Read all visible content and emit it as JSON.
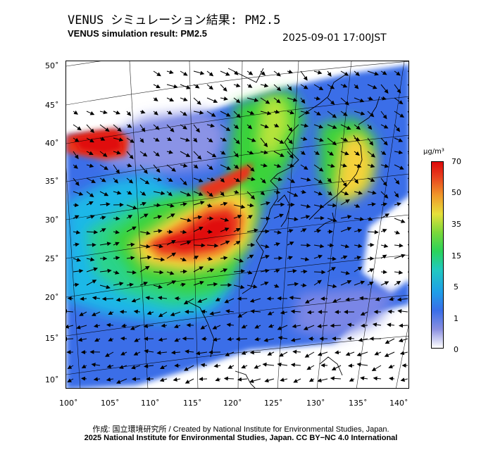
{
  "header": {
    "title_jp": "VENUS シミュレーション結果: PM2.5",
    "title_en": "VENUS simulation result: PM2.5",
    "timestamp": "2025-09-01 17:00JST"
  },
  "axes": {
    "lat_labels": [
      "50˚",
      "45˚",
      "40˚",
      "35˚",
      "30˚",
      "25˚",
      "20˚",
      "15˚",
      "10˚"
    ],
    "lon_labels": [
      "100˚",
      "105˚",
      "110˚",
      "115˚",
      "120˚",
      "125˚",
      "130˚",
      "135˚",
      "140˚"
    ]
  },
  "colorbar": {
    "unit": "µg/m³",
    "ticks": [
      "70",
      "50",
      "35",
      "15",
      "5",
      "1",
      "0"
    ],
    "colors": [
      "#ffffff",
      "#7a86e6",
      "#3a6ee8",
      "#1fb8e8",
      "#2ad38c",
      "#3ad33a",
      "#b6e43a",
      "#f6d23a",
      "#f08a2a",
      "#e8361e",
      "#e01010"
    ]
  },
  "footer": {
    "credit": "作成: 国立環境研究所 / Created by National Institute for Environmental Studies, Japan.",
    "license": "2025 National Institute for Environmental Studies, Japan. CC BY−NC 4.0 International"
  }
}
